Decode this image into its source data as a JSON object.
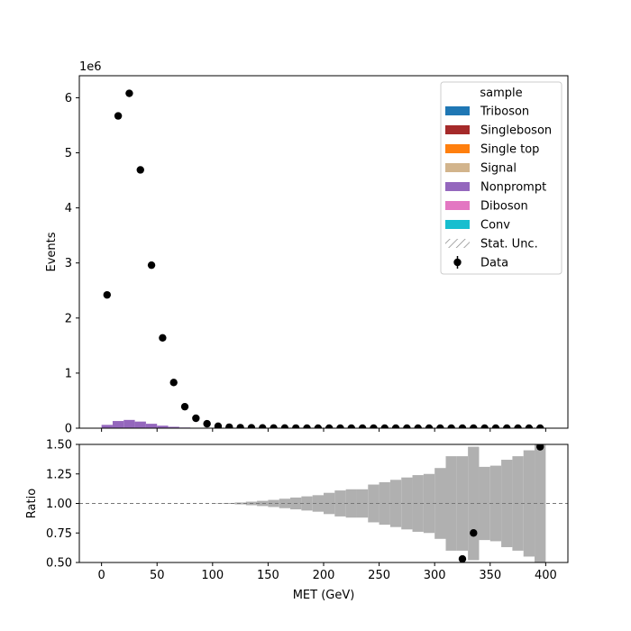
{
  "chart_data": [
    {
      "type": "bar",
      "stacked": true,
      "panel": "main",
      "xlabel": "",
      "ylabel": "Events",
      "yexponent_label": "1e6",
      "ylim": [
        0,
        6400000
      ],
      "xlim": [
        -20,
        420
      ],
      "yticks": [
        0,
        1000000,
        2000000,
        3000000,
        4000000,
        5000000,
        6000000
      ],
      "ytick_labels": [
        "0",
        "1",
        "2",
        "3",
        "4",
        "5",
        "6"
      ],
      "bin_edges": [
        0,
        10,
        20,
        30,
        40,
        50,
        60,
        70,
        80,
        90,
        100,
        110,
        120,
        130,
        140,
        150,
        160,
        170,
        180,
        190,
        200,
        210,
        220,
        230,
        240,
        250,
        260,
        270,
        280,
        290,
        300,
        310,
        320,
        330,
        340,
        350,
        360,
        370,
        380,
        390,
        400
      ],
      "series": [
        {
          "name": "Nonprompt",
          "color": "#9467bd",
          "values": [
            60000,
            130000,
            150000,
            120000,
            80000,
            45000,
            25000,
            12000,
            6000,
            3000,
            1500,
            800,
            400,
            200,
            100,
            50,
            30,
            20,
            10,
            5,
            0,
            0,
            0,
            0,
            0,
            0,
            0,
            0,
            0,
            0,
            0,
            0,
            0,
            0,
            0,
            0,
            0,
            0,
            0,
            0
          ]
        }
      ],
      "data": {
        "name": "Data",
        "x": [
          5,
          15,
          25,
          35,
          45,
          55,
          65,
          75,
          85,
          95,
          105,
          115,
          125,
          135,
          145,
          155,
          165,
          175,
          185,
          195,
          205,
          215,
          225,
          235,
          245,
          255,
          265,
          275,
          285,
          295,
          305,
          315,
          325,
          335,
          345,
          355,
          365,
          375,
          385,
          395
        ],
        "y": [
          2420000,
          5670000,
          6080000,
          4690000,
          2960000,
          1640000,
          830000,
          390000,
          180000,
          80000,
          36000,
          18000,
          10000,
          6000,
          4000,
          3000,
          2200,
          1700,
          1300,
          1000,
          800,
          650,
          520,
          420,
          350,
          290,
          240,
          200,
          170,
          140,
          120,
          100,
          85,
          70,
          60,
          50,
          42,
          36,
          30,
          25
        ]
      },
      "legend": {
        "title": "sample",
        "placement": "upper right",
        "entries": [
          {
            "label": "Triboson",
            "color": "#1f77b4",
            "kind": "patch"
          },
          {
            "label": "Singleboson",
            "color": "#a52a2a",
            "kind": "patch"
          },
          {
            "label": "Single top",
            "color": "#ff7f0e",
            "kind": "patch"
          },
          {
            "label": "Signal",
            "color": "#d2b48c",
            "kind": "patch"
          },
          {
            "label": "Nonprompt",
            "color": "#9467bd",
            "kind": "patch"
          },
          {
            "label": "Diboson",
            "color": "#e377c2",
            "kind": "patch"
          },
          {
            "label": "Conv",
            "color": "#17becf",
            "kind": "patch"
          },
          {
            "label": "Stat. Unc.",
            "color": "#888888",
            "kind": "hatch"
          },
          {
            "label": "Data",
            "color": "#000000",
            "kind": "errorbar"
          }
        ]
      }
    },
    {
      "type": "bar",
      "panel": "ratio",
      "xlabel": "MET (GeV)",
      "ylabel": "Ratio",
      "ylim": [
        0.5,
        1.5
      ],
      "xlim": [
        -20,
        420
      ],
      "xticks": [
        0,
        50,
        100,
        150,
        200,
        250,
        300,
        350,
        400
      ],
      "xtick_labels": [
        "0",
        "50",
        "100",
        "150",
        "200",
        "250",
        "300",
        "350",
        "400"
      ],
      "yticks": [
        0.5,
        0.75,
        1.0,
        1.25,
        1.5
      ],
      "ytick_labels": [
        "0.50",
        "0.75",
        "1.00",
        "1.25",
        "1.50"
      ],
      "reference_line": 1.0,
      "band_color": "#b0b0b0",
      "bin_edges": [
        0,
        10,
        20,
        30,
        40,
        50,
        60,
        70,
        80,
        90,
        100,
        110,
        120,
        130,
        140,
        150,
        160,
        170,
        180,
        190,
        200,
        210,
        220,
        230,
        240,
        250,
        260,
        270,
        280,
        290,
        300,
        310,
        320,
        330,
        340,
        350,
        360,
        370,
        380,
        390,
        400
      ],
      "uncertainty_halfwidth": [
        0,
        0,
        0,
        0,
        0,
        0,
        0,
        0,
        0,
        0,
        0.002,
        0.004,
        0.008,
        0.015,
        0.022,
        0.03,
        0.04,
        0.05,
        0.06,
        0.07,
        0.09,
        0.11,
        0.12,
        0.12,
        0.16,
        0.18,
        0.2,
        0.22,
        0.24,
        0.25,
        0.3,
        0.4,
        0.4,
        0.48,
        0.31,
        0.32,
        0.37,
        0.4,
        0.45,
        0.5
      ],
      "points": {
        "x": [
          325,
          335,
          395
        ],
        "y": [
          0.53,
          0.75,
          1.48
        ]
      }
    }
  ]
}
